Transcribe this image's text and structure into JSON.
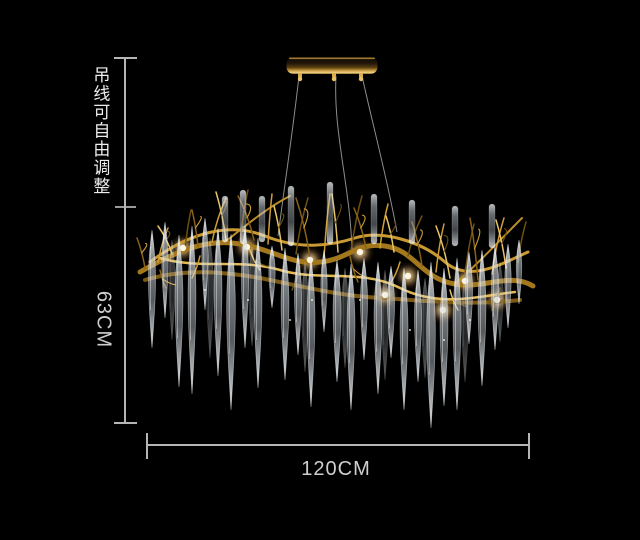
{
  "annotations": {
    "hanging_note": "吊线可自由调整",
    "height_label": "63CM",
    "width_label": "120CM"
  },
  "subject": {
    "description": "gold branch chandelier with clear glass teardrop crystals on black background"
  },
  "colors": {
    "background": "#000000",
    "dimension_line": "#b5b5b5",
    "label_text": "#d3d3d3",
    "gold": "#c0913a",
    "gold_light": "#ecc869",
    "gold_dark": "#6f4f12",
    "crystal": "#dfe5ea",
    "glow": "#ffddA0",
    "wire": "#8d8d8d"
  }
}
